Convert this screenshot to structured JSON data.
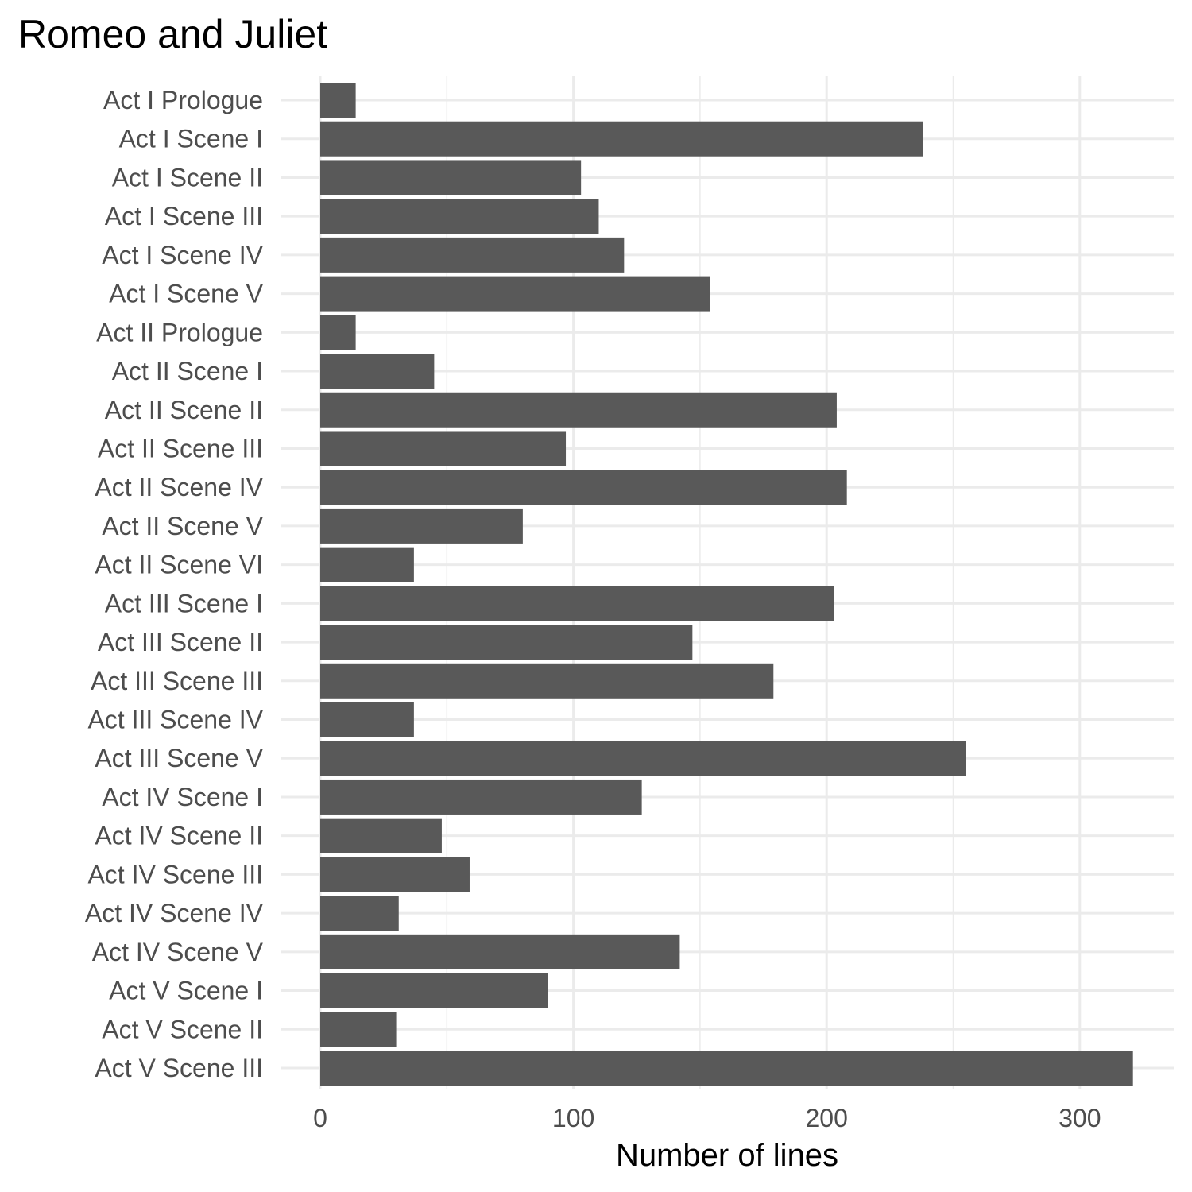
{
  "chart_data": {
    "type": "bar",
    "orientation": "horizontal",
    "title": "Romeo and Juliet",
    "xlabel": "Number of lines",
    "ylabel": "",
    "xlim": [
      0,
      337
    ],
    "xticks": [
      0,
      100,
      200,
      300
    ],
    "grid": true,
    "bar_color": "#595959",
    "grid_color": "#ebebeb",
    "categories": [
      "Act I Prologue",
      "Act I Scene I",
      "Act I Scene II",
      "Act I Scene III",
      "Act I Scene IV",
      "Act I Scene V",
      "Act II Prologue",
      "Act II Scene I",
      "Act II Scene II",
      "Act II Scene III",
      "Act II Scene IV",
      "Act II Scene V",
      "Act II Scene VI",
      "Act III Scene I",
      "Act III Scene II",
      "Act III Scene III",
      "Act III Scene IV",
      "Act III Scene V",
      "Act IV Scene I",
      "Act IV Scene II",
      "Act IV Scene III",
      "Act IV Scene IV",
      "Act IV Scene V",
      "Act V Scene I",
      "Act V Scene II",
      "Act V Scene III"
    ],
    "values": [
      14,
      238,
      103,
      110,
      120,
      154,
      14,
      45,
      204,
      97,
      208,
      80,
      37,
      203,
      147,
      179,
      37,
      255,
      127,
      48,
      59,
      31,
      142,
      90,
      30,
      321
    ]
  }
}
